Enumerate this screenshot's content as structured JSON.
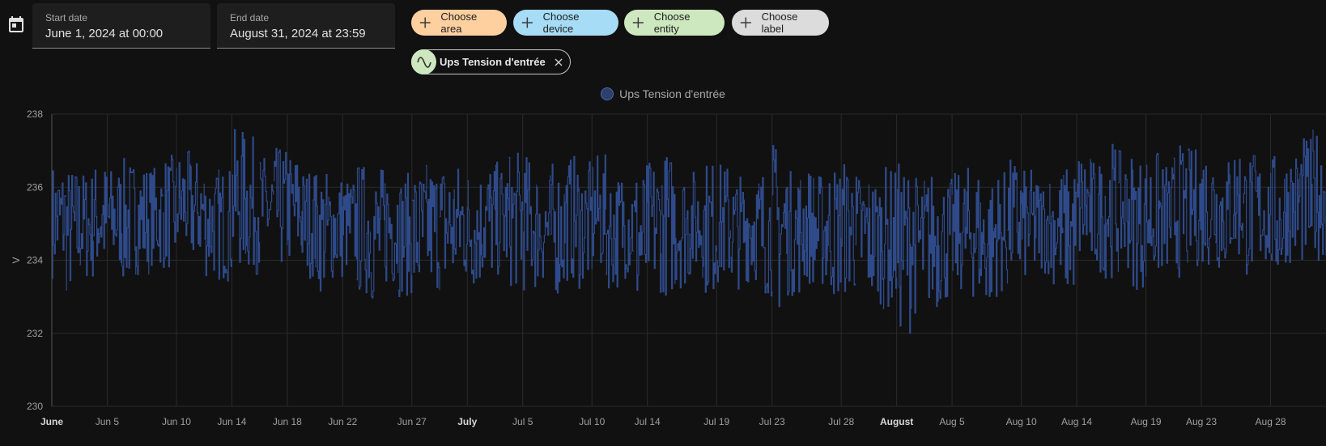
{
  "date_range": {
    "start_label": "Start date",
    "start_value": "June 1, 2024 at 00:00",
    "end_label": "End date",
    "end_value": "August 31, 2024 at 23:59"
  },
  "target_chips": [
    {
      "label": "Choose area",
      "color": "#ffd09f"
    },
    {
      "label": "Choose device",
      "color": "#a6dcf5"
    },
    {
      "label": "Choose entity",
      "color": "#cde8bf"
    },
    {
      "label": "Choose label",
      "color": "#dcdcdc"
    }
  ],
  "selected_entity": {
    "label": "Ups Tension d'entrée",
    "icon": "sine-wave-icon"
  },
  "colors": {
    "series": "#2e4a8a",
    "background": "#111111",
    "grid": "#2b2b2b"
  },
  "chart_data": {
    "type": "line",
    "legend": [
      "Ups Tension d'entrée"
    ],
    "legend_position": "top-center",
    "ylabel": "V",
    "ylim": [
      230,
      238
    ],
    "yticks": [
      230,
      232,
      234,
      236,
      238
    ],
    "x_range": [
      "2024-06-01",
      "2024-08-31"
    ],
    "xticks": [
      {
        "date": "2024-06-01",
        "label": "June",
        "bold": true
      },
      {
        "date": "2024-06-05",
        "label": "Jun 5"
      },
      {
        "date": "2024-06-10",
        "label": "Jun 10"
      },
      {
        "date": "2024-06-14",
        "label": "Jun 14"
      },
      {
        "date": "2024-06-18",
        "label": "Jun 18"
      },
      {
        "date": "2024-06-22",
        "label": "Jun 22"
      },
      {
        "date": "2024-06-27",
        "label": "Jun 27"
      },
      {
        "date": "2024-07-01",
        "label": "July",
        "bold": true
      },
      {
        "date": "2024-07-05",
        "label": "Jul 5"
      },
      {
        "date": "2024-07-10",
        "label": "Jul 10"
      },
      {
        "date": "2024-07-14",
        "label": "Jul 14"
      },
      {
        "date": "2024-07-19",
        "label": "Jul 19"
      },
      {
        "date": "2024-07-23",
        "label": "Jul 23"
      },
      {
        "date": "2024-07-28",
        "label": "Jul 28"
      },
      {
        "date": "2024-08-01",
        "label": "August",
        "bold": true
      },
      {
        "date": "2024-08-05",
        "label": "Aug 5"
      },
      {
        "date": "2024-08-10",
        "label": "Aug 10"
      },
      {
        "date": "2024-08-14",
        "label": "Aug 14"
      },
      {
        "date": "2024-08-19",
        "label": "Aug 19"
      },
      {
        "date": "2024-08-23",
        "label": "Aug 23"
      },
      {
        "date": "2024-08-28",
        "label": "Aug 28"
      }
    ],
    "grid": true,
    "series": [
      {
        "name": "Ups Tension d'entrée",
        "x": [
          "2024-06-01",
          "2024-06-02",
          "2024-06-03",
          "2024-06-04",
          "2024-06-05",
          "2024-06-06",
          "2024-06-07",
          "2024-06-08",
          "2024-06-09",
          "2024-06-10",
          "2024-06-11",
          "2024-06-12",
          "2024-06-13",
          "2024-06-14",
          "2024-06-15",
          "2024-06-16",
          "2024-06-17",
          "2024-06-18",
          "2024-06-19",
          "2024-06-20",
          "2024-06-21",
          "2024-06-22",
          "2024-06-23",
          "2024-06-24",
          "2024-06-25",
          "2024-06-26",
          "2024-06-27",
          "2024-06-28",
          "2024-06-29",
          "2024-06-30",
          "2024-07-01",
          "2024-07-02",
          "2024-07-03",
          "2024-07-04",
          "2024-07-05",
          "2024-07-06",
          "2024-07-07",
          "2024-07-08",
          "2024-07-09",
          "2024-07-10",
          "2024-07-11",
          "2024-07-12",
          "2024-07-13",
          "2024-07-14",
          "2024-07-15",
          "2024-07-16",
          "2024-07-17",
          "2024-07-18",
          "2024-07-19",
          "2024-07-20",
          "2024-07-21",
          "2024-07-22",
          "2024-07-23",
          "2024-07-24",
          "2024-07-25",
          "2024-07-26",
          "2024-07-27",
          "2024-07-28",
          "2024-07-29",
          "2024-07-30",
          "2024-07-31",
          "2024-08-01",
          "2024-08-02",
          "2024-08-03",
          "2024-08-04",
          "2024-08-05",
          "2024-08-06",
          "2024-08-07",
          "2024-08-08",
          "2024-08-09",
          "2024-08-10",
          "2024-08-11",
          "2024-08-12",
          "2024-08-13",
          "2024-08-14",
          "2024-08-15",
          "2024-08-16",
          "2024-08-17",
          "2024-08-18",
          "2024-08-19",
          "2024-08-20",
          "2024-08-21",
          "2024-08-22",
          "2024-08-23",
          "2024-08-24",
          "2024-08-25",
          "2024-08-26",
          "2024-08-27",
          "2024-08-28",
          "2024-08-29",
          "2024-08-30",
          "2024-08-31"
        ],
        "min": [
          233.5,
          233.0,
          233.4,
          233.6,
          233.7,
          233.3,
          233.6,
          233.8,
          233.7,
          234.1,
          233.9,
          233.5,
          233.4,
          233.7,
          233.6,
          233.9,
          233.7,
          233.8,
          233.5,
          233.1,
          233.4,
          233.6,
          233.0,
          232.8,
          233.2,
          233.0,
          232.7,
          233.1,
          233.0,
          233.3,
          233.2,
          233.4,
          233.5,
          233.2,
          233.1,
          233.3,
          233.0,
          233.4,
          233.2,
          233.6,
          233.2,
          233.5,
          232.4,
          233.1,
          233.0,
          233.2,
          233.5,
          233.0,
          233.3,
          233.2,
          233.4,
          233.0,
          232.4,
          233.0,
          233.3,
          233.2,
          232.9,
          233.0,
          232.9,
          232.8,
          232.6,
          232.0,
          232.5,
          232.6,
          232.8,
          233.1,
          232.9,
          232.6,
          233.0,
          233.3,
          233.4,
          233.6,
          233.3,
          233.0,
          233.8,
          233.6,
          233.5,
          233.7,
          233.2,
          233.4,
          233.6,
          233.5,
          233.8,
          233.8,
          233.7,
          233.9,
          233.5,
          233.8,
          233.4,
          233.9,
          233.8,
          234.0
        ],
        "max": [
          236.7,
          236.6,
          236.5,
          236.7,
          236.6,
          236.8,
          236.7,
          236.6,
          236.9,
          237.0,
          236.8,
          236.5,
          236.6,
          237.6,
          237.4,
          236.9,
          237.1,
          237.0,
          236.6,
          236.5,
          236.4,
          236.3,
          236.7,
          236.6,
          236.8,
          236.4,
          236.6,
          236.7,
          236.8,
          236.7,
          236.6,
          236.8,
          236.7,
          237.0,
          236.9,
          236.5,
          236.7,
          236.9,
          236.7,
          236.9,
          236.4,
          236.6,
          236.7,
          236.8,
          237.0,
          236.6,
          236.5,
          236.8,
          236.7,
          236.4,
          236.5,
          236.6,
          237.3,
          236.5,
          236.6,
          236.4,
          236.7,
          236.8,
          236.5,
          236.4,
          236.6,
          236.7,
          236.4,
          236.5,
          236.3,
          236.4,
          236.6,
          236.3,
          236.5,
          236.8,
          236.5,
          236.3,
          236.5,
          236.6,
          237.1,
          236.8,
          237.3,
          237.0,
          236.9,
          237.0,
          236.7,
          237.2,
          237.1,
          237.2,
          236.9,
          237.3,
          237.0,
          236.8,
          236.9,
          237.1,
          237.4,
          237.6
        ]
      }
    ]
  }
}
